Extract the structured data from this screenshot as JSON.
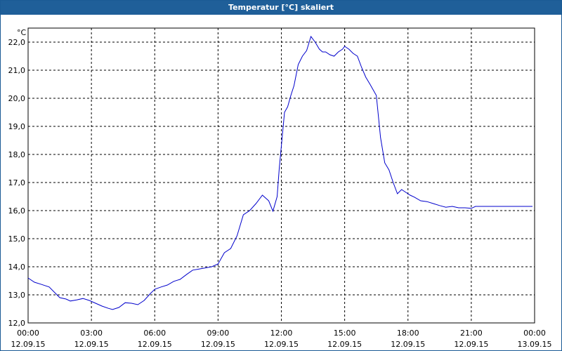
{
  "window": {
    "title": "Temperatur [°C] skaliert"
  },
  "chart_data": {
    "type": "line",
    "title": "Temperatur [°C] skaliert",
    "ylabel": "°C",
    "xlabel": "",
    "ylim": [
      12.0,
      22.5
    ],
    "xlim": [
      0,
      24
    ],
    "grid": true,
    "line_color": "#0000cc",
    "y_ticks": [
      "12,0",
      "13,0",
      "14,0",
      "15,0",
      "16,0",
      "17,0",
      "18,0",
      "19,0",
      "20,0",
      "21,0",
      "22,0"
    ],
    "x_ticks": [
      {
        "time": "00:00",
        "date": "12.09.15"
      },
      {
        "time": "03:00",
        "date": "12.09.15"
      },
      {
        "time": "06:00",
        "date": "12.09.15"
      },
      {
        "time": "09:00",
        "date": "12.09.15"
      },
      {
        "time": "12:00",
        "date": "12.09.15"
      },
      {
        "time": "15:00",
        "date": "12.09.15"
      },
      {
        "time": "18:00",
        "date": "12.09.15"
      },
      {
        "time": "21:00",
        "date": "12.09.15"
      },
      {
        "time": "00:00",
        "date": "13.09.15"
      }
    ],
    "series": [
      {
        "x": [
          0,
          0.3,
          0.6,
          1,
          1.3,
          1.5,
          1.8,
          2,
          2.3,
          2.6,
          2.9,
          3.2,
          3.5,
          3.8,
          4,
          4.3,
          4.6,
          4.9,
          5.2,
          5.5,
          5.8,
          6,
          6.3,
          6.6,
          6.9,
          7.2,
          7.5,
          7.8,
          8.1,
          8.4,
          8.7,
          9,
          9.3,
          9.6,
          9.9,
          10.2,
          10.5,
          10.8,
          11.1,
          11.4,
          11.6,
          11.8,
          11.9,
          12,
          12.15,
          12.3,
          12.45,
          12.6,
          12.8,
          13,
          13.2,
          13.4,
          13.6,
          13.8,
          13.95,
          14.1,
          14.3,
          14.5,
          14.7,
          14.9,
          15,
          15.2,
          15.4,
          15.6,
          15.8,
          16,
          16.2,
          16.5,
          16.7,
          16.9,
          17.1,
          17.3,
          17.5,
          17.7,
          17.9,
          18.1,
          18.3,
          18.6,
          18.9,
          19.2,
          19.5,
          19.8,
          20.1,
          20.4,
          20.7,
          21,
          21.2,
          21.4,
          21.7,
          22,
          22.3,
          22.5,
          22.7,
          23,
          23.3,
          23.6,
          23.9
        ],
        "y": [
          13.6,
          13.45,
          13.38,
          13.28,
          13.05,
          12.9,
          12.85,
          12.78,
          12.82,
          12.87,
          12.8,
          12.7,
          12.6,
          12.52,
          12.48,
          12.55,
          12.72,
          12.7,
          12.65,
          12.8,
          13.05,
          13.2,
          13.28,
          13.35,
          13.48,
          13.55,
          13.72,
          13.88,
          13.92,
          13.96,
          14.0,
          14.1,
          14.5,
          14.65,
          15.1,
          15.85,
          16.0,
          16.25,
          16.55,
          16.35,
          15.98,
          16.5,
          17.5,
          18.3,
          19.5,
          19.7,
          20.1,
          20.45,
          21.2,
          21.5,
          21.7,
          22.2,
          22.0,
          21.75,
          21.65,
          21.65,
          21.55,
          21.5,
          21.65,
          21.75,
          21.85,
          21.75,
          21.6,
          21.5,
          21.1,
          20.75,
          20.5,
          20.1,
          18.6,
          17.7,
          17.45,
          17.0,
          16.6,
          16.75,
          16.65,
          16.55,
          16.48,
          16.35,
          16.32,
          16.25,
          16.18,
          16.12,
          16.15,
          16.1,
          16.1,
          16.08,
          16.15,
          16.15,
          16.15,
          16.15,
          16.15,
          16.15,
          16.15,
          16.15,
          16.15,
          16.15,
          16.15
        ]
      }
    ]
  }
}
